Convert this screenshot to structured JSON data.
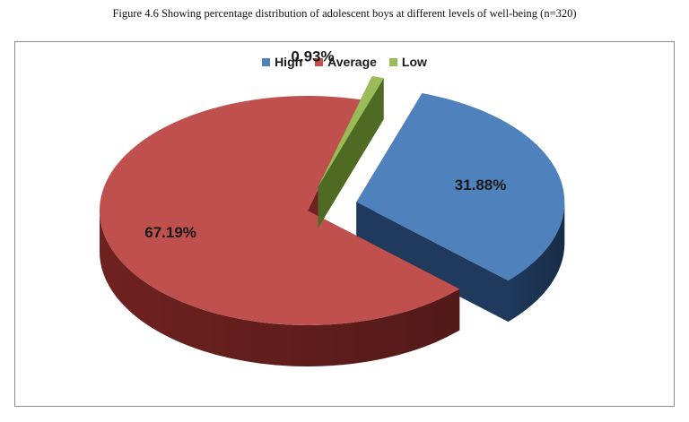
{
  "caption": "Figure 4.6 Showing percentage distribution of adolescent boys at different levels of well-being (n=320)",
  "chart_data": {
    "type": "pie",
    "title": "",
    "series": [
      {
        "name": "High",
        "value": 31.88,
        "label": "31.88%",
        "color": "#4f81bd",
        "side_color": "#1f3a5c"
      },
      {
        "name": "Average",
        "value": 67.19,
        "label": "67.19%",
        "color": "#c0504d",
        "side_color": "#6e2220"
      },
      {
        "name": "Low",
        "value": 0.93,
        "label": "0.93%",
        "color": "#9bbb59",
        "side_color": "#4f6a22"
      }
    ],
    "legend_position": "top",
    "exploded": true,
    "three_d": true
  }
}
